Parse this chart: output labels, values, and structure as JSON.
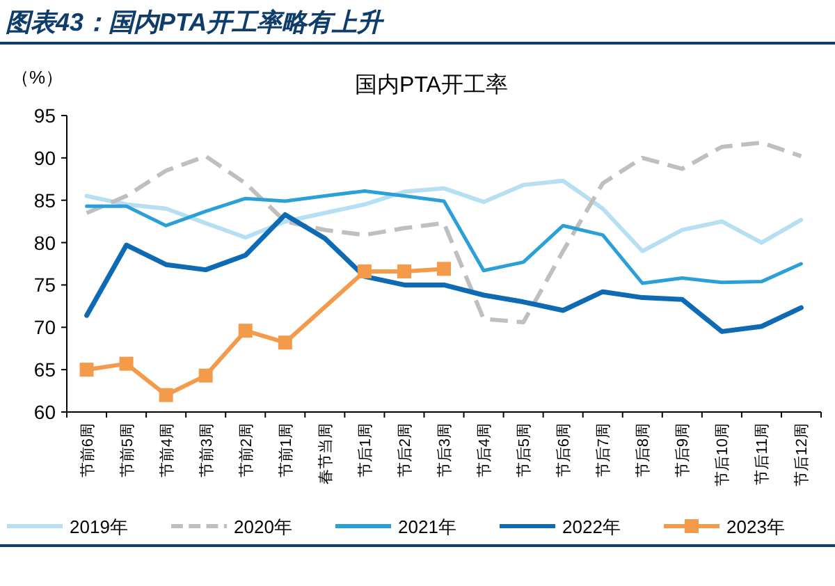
{
  "chart_data": {
    "type": "line",
    "title": "国内PTA开工率",
    "subtitle": "图表43：国内PTA开工率略有上升",
    "ylabel": "（%）",
    "categories": [
      "节前6周",
      "节前5周",
      "节前4周",
      "节前3周",
      "节前2周",
      "节前1周",
      "春节当周",
      "节后1周",
      "节后2周",
      "节后3周",
      "节后4周",
      "节后5周",
      "节后6周",
      "节后7周",
      "节后8周",
      "节后9周",
      "节后10周",
      "节后11周",
      "节后12周"
    ],
    "ylim": [
      60,
      95
    ],
    "yticks": [
      60,
      65,
      70,
      75,
      80,
      85,
      90,
      95
    ],
    "grid": false,
    "legend": "bottom",
    "series": [
      {
        "name": "2019年",
        "color": "#b7dff3",
        "values": [
          85.5,
          84.5,
          84,
          82.3,
          80.6,
          82.5,
          83.5,
          84.5,
          86,
          86.4,
          84.8,
          86.8,
          87.3,
          84,
          79,
          81.5,
          82.5,
          80,
          82.7
        ]
      },
      {
        "name": "2020年",
        "color": "#bfbfbf",
        "line_style": "dashed",
        "values": [
          83.5,
          85.5,
          88.5,
          90.2,
          87,
          82.5,
          81.5,
          80.9,
          81.7,
          82.3,
          71,
          70.6,
          79,
          87,
          90,
          88.7,
          91.3,
          91.8,
          90.2
        ]
      },
      {
        "name": "2021年",
        "color": "#2a9fd8",
        "values": [
          84.3,
          84.3,
          82,
          83.7,
          85.2,
          84.9,
          85.5,
          86.1,
          85.5,
          84.9,
          76.7,
          77.7,
          82,
          80.9,
          75.2,
          75.8,
          75.3,
          75.4,
          77.5
        ]
      },
      {
        "name": "2022年",
        "color": "#0e6bb3",
        "values": [
          71.4,
          79.7,
          77.4,
          76.8,
          78.5,
          83.3,
          80.5,
          76,
          75,
          75,
          73.8,
          73,
          72,
          74.2,
          73.5,
          73.3,
          69.5,
          70.1,
          72.3
        ]
      },
      {
        "name": "2023年",
        "color": "#f39b4a",
        "marker": "square",
        "values": [
          65,
          65.7,
          62,
          64.3,
          69.6,
          68.2,
          null,
          76.6,
          76.6,
          76.9,
          null,
          null,
          null,
          null,
          null,
          null,
          null,
          null,
          null
        ]
      }
    ]
  }
}
